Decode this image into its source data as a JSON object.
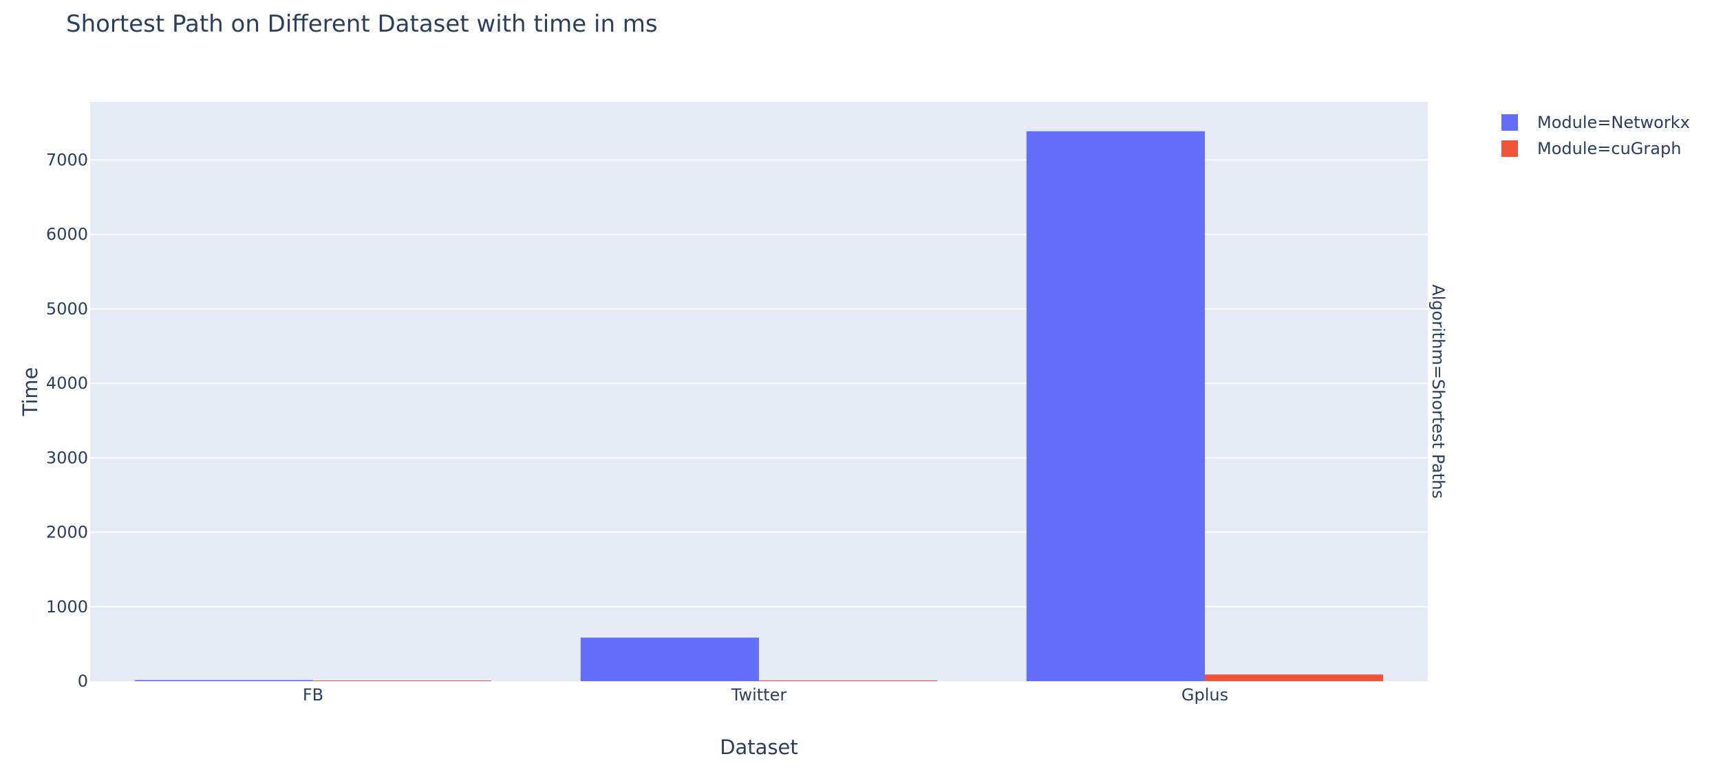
{
  "chart_data": {
    "type": "bar",
    "title": "Shortest Path on Different Dataset with time in ms",
    "xlabel": "Dataset",
    "ylabel": "Time",
    "facet_label": "Algorithm=Shortest Paths",
    "categories": [
      "FB",
      "Twitter",
      "Gplus"
    ],
    "series": [
      {
        "name": "Module=Networkx",
        "color": "#636efa",
        "values": [
          15,
          585,
          7385
        ]
      },
      {
        "name": "Module=cuGraph",
        "color": "#EF553B",
        "values": [
          3,
          10,
          90
        ]
      }
    ],
    "ylim": [
      0,
      7780
    ],
    "yticks": [
      0,
      1000,
      2000,
      3000,
      4000,
      5000,
      6000,
      7000
    ],
    "grid": true,
    "legend_position": "top-right",
    "plot_background": "#e5ecf6"
  }
}
